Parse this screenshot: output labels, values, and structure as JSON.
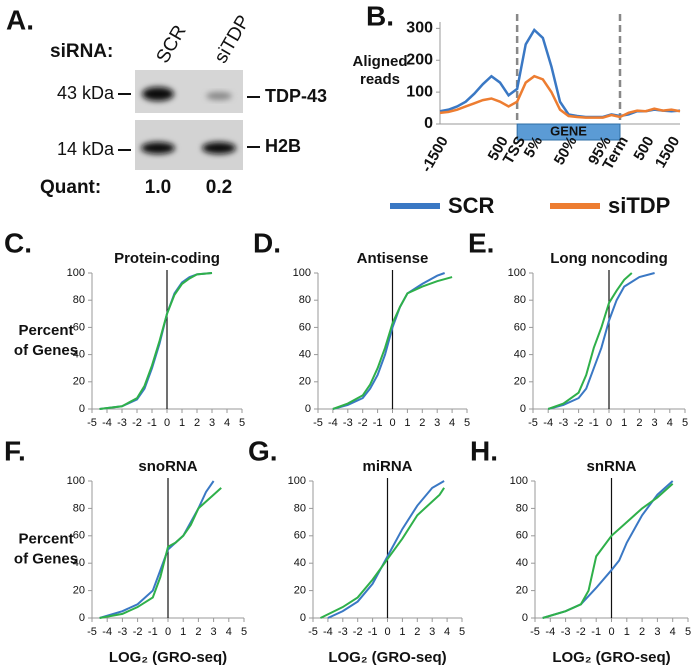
{
  "blot": {
    "panel_label": "A.",
    "header": "siRNA:",
    "lanes": [
      "SCR",
      "siTDP"
    ],
    "markers": [
      "43 kDa",
      "14 kDa"
    ],
    "proteins": [
      "TDP-43",
      "H2B"
    ],
    "quant_label": "Quant:",
    "quant": [
      "1.0",
      "0.2"
    ]
  },
  "chart_data": [
    {
      "type": "line",
      "panel_label": "B.",
      "ylabel": [
        "Aligned",
        "reads"
      ],
      "annotation": "GENE",
      "categories": [
        "-1500",
        null,
        null,
        null,
        null,
        null,
        null,
        "500",
        null,
        "TSS",
        null,
        "5%",
        null,
        null,
        null,
        "50%",
        null,
        null,
        null,
        "95%",
        null,
        "Term",
        null,
        null,
        "500",
        null,
        null,
        "1500",
        null
      ],
      "series": [
        {
          "name": "SCR",
          "color": "#3a78c4",
          "values": [
            40,
            45,
            55,
            70,
            95,
            125,
            150,
            130,
            90,
            110,
            250,
            295,
            270,
            180,
            70,
            30,
            25,
            22,
            22,
            22,
            30,
            25,
            30,
            40,
            40,
            45,
            42,
            40,
            42
          ]
        },
        {
          "name": "siTDP",
          "color": "#ed7d31",
          "values": [
            35,
            38,
            45,
            55,
            65,
            75,
            80,
            70,
            55,
            70,
            130,
            150,
            140,
            100,
            45,
            25,
            22,
            20,
            20,
            20,
            28,
            22,
            35,
            42,
            40,
            48,
            42,
            45,
            40
          ]
        }
      ],
      "ylim": [
        0,
        320
      ],
      "yticks": [
        0,
        100,
        200,
        300
      ]
    },
    {
      "type": "cdf",
      "panel_label": "C.",
      "title": "Protein-coding",
      "ylabel": [
        "Percent",
        "of Genes"
      ],
      "xlim": [
        -5,
        5
      ],
      "xticks": [
        -5,
        -4,
        -3,
        -2,
        -1,
        0,
        1,
        2,
        3,
        4,
        5
      ],
      "ylim": [
        0,
        100
      ],
      "yticks": [
        0,
        20,
        40,
        60,
        80,
        100
      ],
      "series": [
        {
          "color": "#3a78c4",
          "x": [
            -4.5,
            -3,
            -2,
            -1.5,
            -1,
            -0.5,
            0,
            0.5,
            1,
            1.5,
            2,
            3
          ],
          "values": [
            0,
            2,
            7,
            15,
            30,
            48,
            70,
            85,
            93,
            97,
            99,
            100
          ]
        },
        {
          "color": "#2fb04a",
          "x": [
            -4.5,
            -3,
            -2,
            -1.5,
            -1,
            -0.5,
            0,
            0.5,
            1,
            1.5,
            2,
            3
          ],
          "values": [
            0,
            2,
            8,
            17,
            32,
            50,
            70,
            84,
            92,
            96,
            99,
            100
          ]
        }
      ]
    },
    {
      "type": "cdf",
      "panel_label": "D.",
      "title": "Antisense",
      "xlim": [
        -5,
        5
      ],
      "xticks": [
        -5,
        -4,
        -3,
        -2,
        -1,
        0,
        1,
        2,
        3,
        4,
        5
      ],
      "ylim": [
        0,
        100
      ],
      "yticks": [
        0,
        20,
        40,
        60,
        80,
        100
      ],
      "series": [
        {
          "color": "#3a78c4",
          "x": [
            -4,
            -3,
            -2,
            -1.5,
            -1,
            -0.5,
            0,
            0.5,
            1,
            2,
            3,
            3.5
          ],
          "values": [
            0,
            3,
            8,
            15,
            25,
            40,
            60,
            75,
            85,
            92,
            98,
            100
          ]
        },
        {
          "color": "#2fb04a",
          "x": [
            -4,
            -3,
            -2,
            -1.5,
            -1,
            -0.5,
            0,
            0.5,
            1,
            2,
            3,
            4
          ],
          "values": [
            0,
            4,
            10,
            18,
            30,
            45,
            63,
            75,
            85,
            90,
            94,
            97
          ]
        }
      ]
    },
    {
      "type": "cdf",
      "panel_label": "E.",
      "title": "Long noncoding",
      "xlim": [
        -5,
        5
      ],
      "xticks": [
        -5,
        -4,
        -3,
        -2,
        -1,
        0,
        1,
        2,
        3,
        4,
        5
      ],
      "ylim": [
        0,
        100
      ],
      "yticks": [
        0,
        20,
        40,
        60,
        80,
        100
      ],
      "series": [
        {
          "color": "#3a78c4",
          "x": [
            -4,
            -3,
            -2,
            -1.5,
            -1,
            -0.5,
            0,
            0.5,
            1,
            2,
            3
          ],
          "values": [
            0,
            3,
            8,
            15,
            30,
            45,
            65,
            80,
            90,
            97,
            100
          ]
        },
        {
          "color": "#2fb04a",
          "x": [
            -4,
            -3,
            -2,
            -1.5,
            -1,
            -0.5,
            0,
            0.5,
            1,
            1.5
          ],
          "values": [
            0,
            4,
            12,
            25,
            45,
            60,
            78,
            87,
            95,
            100
          ]
        }
      ]
    },
    {
      "type": "cdf",
      "panel_label": "F.",
      "title": "snoRNA",
      "ylabel": [
        "Percent",
        "of Genes"
      ],
      "xlabel": "LOG₂ (GRO-seq)",
      "xlim": [
        -5,
        5
      ],
      "xticks": [
        -5,
        -4,
        -3,
        -2,
        -1,
        0,
        1,
        2,
        3,
        4,
        5
      ],
      "ylim": [
        0,
        100
      ],
      "yticks": [
        0,
        20,
        40,
        60,
        80,
        100
      ],
      "series": [
        {
          "color": "#3a78c4",
          "x": [
            -4.5,
            -3,
            -2,
            -1,
            -0.5,
            0,
            0.5,
            1,
            2,
            2.5,
            3
          ],
          "values": [
            0,
            5,
            10,
            20,
            35,
            50,
            55,
            60,
            80,
            92,
            100
          ]
        },
        {
          "color": "#2fb04a",
          "x": [
            -4.5,
            -3,
            -2,
            -1,
            -0.5,
            0,
            0.5,
            1,
            1.5,
            2,
            3,
            3.5
          ],
          "values": [
            0,
            3,
            8,
            15,
            30,
            52,
            55,
            60,
            68,
            80,
            90,
            95
          ]
        }
      ]
    },
    {
      "type": "cdf",
      "panel_label": "G.",
      "title": "miRNA",
      "xlabel": "LOG₂ (GRO-seq)",
      "xlim": [
        -5,
        5
      ],
      "xticks": [
        -5,
        -4,
        -3,
        -2,
        -1,
        0,
        1,
        2,
        3,
        4,
        5
      ],
      "ylim": [
        0,
        100
      ],
      "yticks": [
        0,
        20,
        40,
        60,
        80,
        100
      ],
      "series": [
        {
          "color": "#3a78c4",
          "x": [
            -4,
            -3,
            -2,
            -1,
            0,
            1,
            2,
            3,
            3.8
          ],
          "values": [
            0,
            5,
            12,
            25,
            45,
            65,
            82,
            95,
            100
          ]
        },
        {
          "color": "#2fb04a",
          "x": [
            -4.5,
            -3,
            -2,
            -1,
            0,
            1,
            2,
            2.5,
            3.5,
            3.8
          ],
          "values": [
            0,
            8,
            15,
            28,
            43,
            58,
            75,
            80,
            90,
            95
          ]
        }
      ]
    },
    {
      "type": "cdf",
      "panel_label": "H.",
      "title": "snRNA",
      "xlabel": "LOG₂ (GRO-seq)",
      "xlim": [
        -5,
        5
      ],
      "xticks": [
        -5,
        -4,
        -3,
        -2,
        -1,
        0,
        1,
        2,
        3,
        4,
        5
      ],
      "ylim": [
        0,
        100
      ],
      "yticks": [
        0,
        20,
        40,
        60,
        80,
        100
      ],
      "series": [
        {
          "color": "#3a78c4",
          "x": [
            -4.5,
            -3,
            -2,
            -1,
            0,
            0.5,
            1,
            2,
            3,
            4
          ],
          "values": [
            0,
            5,
            10,
            22,
            35,
            42,
            55,
            75,
            90,
            100
          ]
        },
        {
          "color": "#2fb04a",
          "x": [
            -4.5,
            -3,
            -2,
            -1.5,
            -1,
            0,
            1,
            2,
            3,
            4
          ],
          "values": [
            0,
            5,
            10,
            20,
            45,
            60,
            70,
            80,
            88,
            98
          ]
        }
      ]
    }
  ]
}
